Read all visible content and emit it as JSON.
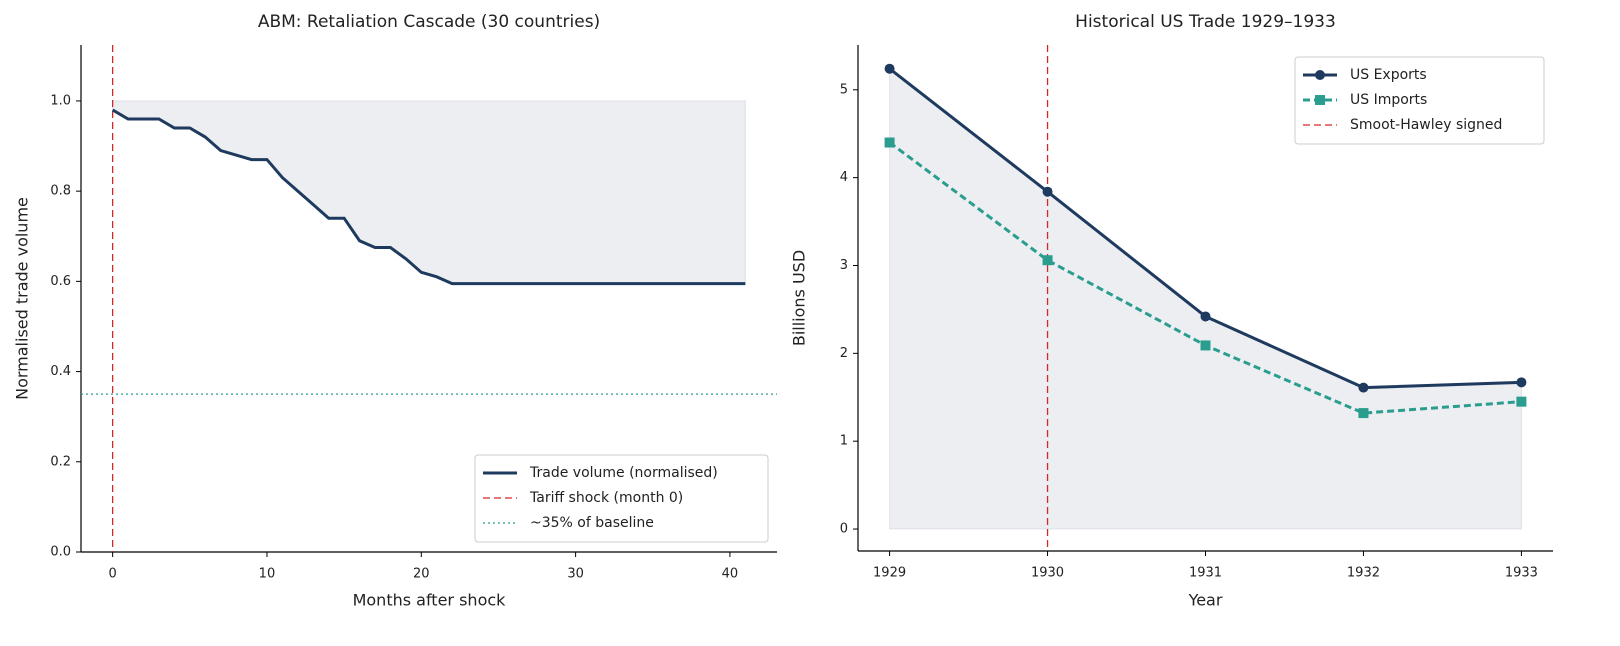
{
  "chart_data": [
    {
      "type": "line",
      "title": "ABM: Retaliation Cascade (30 countries)",
      "x_label": "Months after shock",
      "y_label": "Normalised trade volume",
      "x": [
        0,
        1,
        2,
        3,
        4,
        5,
        6,
        7,
        8,
        9,
        10,
        11,
        12,
        13,
        14,
        15,
        16,
        17,
        18,
        19,
        20,
        21,
        22,
        23,
        24,
        25,
        26,
        27,
        28,
        29,
        30,
        31,
        32,
        33,
        34,
        35,
        36,
        37,
        38,
        39,
        40,
        41
      ],
      "series": [
        {
          "name": "Trade volume (normalised)",
          "color": "#1f3a5f",
          "style": "solid",
          "marker": "none",
          "values": [
            0.98,
            0.96,
            0.96,
            0.96,
            0.94,
            0.94,
            0.92,
            0.89,
            0.88,
            0.87,
            0.87,
            0.83,
            0.8,
            0.77,
            0.74,
            0.74,
            0.69,
            0.675,
            0.675,
            0.65,
            0.62,
            0.61,
            0.595,
            0.595,
            0.595,
            0.595,
            0.595,
            0.595,
            0.595,
            0.595,
            0.595,
            0.595,
            0.595,
            0.595,
            0.595,
            0.595,
            0.595,
            0.595,
            0.595,
            0.595,
            0.595,
            0.595
          ]
        }
      ],
      "fill_to": 1.0,
      "reference_lines": [
        {
          "name": "Tariff shock (month 0)",
          "axis": "x",
          "value": 0,
          "color": "#d62728",
          "style": "dashed"
        },
        {
          "name": "~35% of baseline",
          "axis": "y",
          "value": 0.35,
          "color": "#2a9d8f",
          "style": "dotted"
        }
      ],
      "xlim": [
        -2.05,
        43.05
      ],
      "xticks": [
        0,
        10,
        20,
        30,
        40
      ],
      "ylim": [
        0,
        1.124
      ],
      "yticks": [
        {
          "value": 0,
          "label": "0.0"
        },
        {
          "value": 0.2,
          "label": "0.2"
        },
        {
          "value": 0.4,
          "label": "0.4"
        },
        {
          "value": 0.6,
          "label": "0.6"
        },
        {
          "value": 0.8,
          "label": "0.8"
        },
        {
          "value": 1.0,
          "label": "1.0"
        }
      ],
      "legend": "lower right",
      "grid": false
    },
    {
      "type": "line",
      "title": "Historical US Trade 1929–1933",
      "x_label": "Year",
      "y_label": "Billions USD",
      "x": [
        1929,
        1930,
        1931,
        1932,
        1933
      ],
      "series": [
        {
          "name": "US Exports",
          "color": "#1f3a5f",
          "style": "solid",
          "marker": "circle",
          "values": [
            5.24,
            3.84,
            2.42,
            1.61,
            1.67
          ]
        },
        {
          "name": "US Imports",
          "color": "#2a9d8f",
          "style": "dashed",
          "marker": "square",
          "values": [
            4.4,
            3.06,
            2.09,
            1.32,
            1.45
          ]
        }
      ],
      "fill_to": 0,
      "reference_lines": [
        {
          "name": "Smoot-Hawley signed",
          "axis": "x",
          "value": 1930,
          "color": "#d62728",
          "style": "dashed"
        }
      ],
      "xlim": [
        1928.8,
        1933.2
      ],
      "xticks": [
        1929,
        1930,
        1931,
        1932,
        1933
      ],
      "ylim": [
        -0.25,
        5.51
      ],
      "yticks": [
        0,
        1,
        2,
        3,
        4,
        5
      ],
      "legend": "upper right",
      "grid": false
    }
  ]
}
